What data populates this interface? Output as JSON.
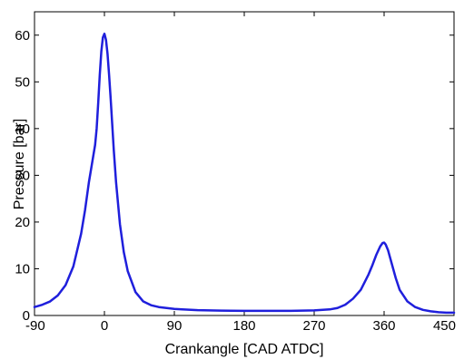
{
  "chart_data": {
    "type": "line",
    "title": "",
    "xlabel": "Crankangle [CAD ATDC]",
    "ylabel": "Pressure [bar]",
    "xlim": [
      -90,
      450
    ],
    "ylim": [
      0,
      65
    ],
    "x_ticks": [
      -90,
      0,
      90,
      180,
      270,
      360,
      450
    ],
    "x_tick_labels": [
      "-90",
      "0",
      "90",
      "180",
      "270",
      "360",
      "450"
    ],
    "y_ticks": [
      0,
      10,
      20,
      30,
      40,
      50,
      60
    ],
    "y_tick_labels": [
      "0",
      "10",
      "20",
      "30",
      "40",
      "50",
      "60"
    ],
    "grid": false,
    "legend": "none",
    "series": [
      {
        "color": "#1f1fdc",
        "x": [
          -90,
          -80,
          -70,
          -60,
          -50,
          -40,
          -30,
          -25,
          -20,
          -15,
          -12,
          -10,
          -8,
          -6,
          -4,
          -2,
          0,
          2,
          4,
          6,
          8,
          10,
          12,
          15,
          20,
          25,
          30,
          40,
          50,
          60,
          70,
          80,
          90,
          100,
          120,
          150,
          180,
          210,
          240,
          270,
          290,
          300,
          310,
          320,
          330,
          340,
          345,
          350,
          355,
          358,
          360,
          362,
          365,
          370,
          375,
          380,
          390,
          400,
          410,
          420,
          430,
          440,
          450
        ],
        "y": [
          1.8,
          2.3,
          3.0,
          4.3,
          6.5,
          10.5,
          17.5,
          22.5,
          28.5,
          33.5,
          36.5,
          40.0,
          45.5,
          51.5,
          56.5,
          59.5,
          60.3,
          59.0,
          56.0,
          51.5,
          46.5,
          41.0,
          35.5,
          28.5,
          19.5,
          13.5,
          9.5,
          5.0,
          3.0,
          2.2,
          1.8,
          1.6,
          1.4,
          1.3,
          1.15,
          1.05,
          1.0,
          1.0,
          1.0,
          1.1,
          1.3,
          1.6,
          2.3,
          3.6,
          5.5,
          8.8,
          10.8,
          13.0,
          14.8,
          15.5,
          15.6,
          15.2,
          14.0,
          11.0,
          8.0,
          5.5,
          3.0,
          1.8,
          1.2,
          0.9,
          0.7,
          0.6,
          0.6
        ]
      }
    ]
  }
}
